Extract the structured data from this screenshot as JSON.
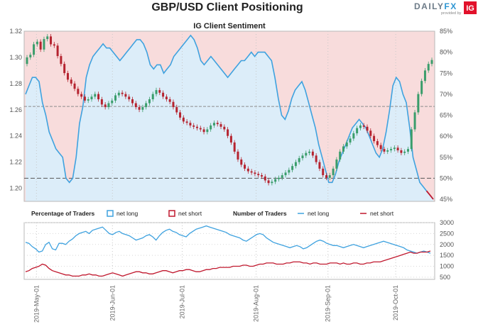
{
  "title": "GBP/USD Client Positioning",
  "logo": {
    "brand": "DAILYFX",
    "provided_by": "provided by",
    "ig": "IG"
  },
  "colors": {
    "long_line": "#3fa2df",
    "short_line": "#c0182e",
    "long_fill": "#dcedf9",
    "short_fill": "#f8dcdc",
    "candle_up": "#3a9d6b",
    "candle_down": "#b5232f"
  },
  "chart_data": [
    {
      "type": "candlestick+line",
      "title": "IG Client Sentiment",
      "y_left_ticks": [
        "1.32",
        "1.30",
        "1.28",
        "1.26",
        "1.24",
        "1.22",
        "1.20"
      ],
      "y_right_ticks": [
        "85%",
        "80%",
        "75%",
        "70%",
        "65%",
        "60%",
        "55%",
        "50%",
        "45%"
      ],
      "ylim_price": [
        1.19,
        1.32
      ],
      "ylim_pct": [
        44.5,
        85
      ],
      "reference_lines": {
        "price": 1.2625,
        "pct": 50
      },
      "candles": [
        [
          1.295,
          1.3
        ],
        [
          1.3,
          1.302
        ],
        [
          1.302,
          1.31
        ],
        [
          1.31,
          1.312
        ],
        [
          1.312,
          1.306
        ],
        [
          1.306,
          1.314
        ],
        [
          1.314,
          1.316
        ],
        [
          1.316,
          1.31
        ],
        [
          1.31,
          1.309
        ],
        [
          1.309,
          1.301
        ],
        [
          1.301,
          1.295
        ],
        [
          1.295,
          1.288
        ],
        [
          1.288,
          1.283
        ],
        [
          1.283,
          1.28
        ],
        [
          1.28,
          1.276
        ],
        [
          1.276,
          1.272
        ],
        [
          1.272,
          1.27
        ],
        [
          1.27,
          1.267
        ],
        [
          1.267,
          1.268
        ],
        [
          1.268,
          1.27
        ],
        [
          1.27,
          1.272
        ],
        [
          1.272,
          1.268
        ],
        [
          1.268,
          1.264
        ],
        [
          1.264,
          1.262
        ],
        [
          1.262,
          1.265
        ],
        [
          1.265,
          1.267
        ],
        [
          1.267,
          1.271
        ],
        [
          1.271,
          1.273
        ],
        [
          1.273,
          1.272
        ],
        [
          1.272,
          1.27
        ],
        [
          1.27,
          1.268
        ],
        [
          1.268,
          1.265
        ],
        [
          1.265,
          1.262
        ],
        [
          1.262,
          1.26
        ],
        [
          1.26,
          1.262
        ],
        [
          1.262,
          1.265
        ],
        [
          1.265,
          1.268
        ],
        [
          1.268,
          1.272
        ],
        [
          1.272,
          1.275
        ],
        [
          1.275,
          1.273
        ],
        [
          1.273,
          1.27
        ],
        [
          1.27,
          1.268
        ],
        [
          1.268,
          1.266
        ],
        [
          1.266,
          1.262
        ],
        [
          1.262,
          1.258
        ],
        [
          1.258,
          1.254
        ],
        [
          1.254,
          1.251
        ],
        [
          1.251,
          1.25
        ],
        [
          1.25,
          1.248
        ],
        [
          1.248,
          1.247
        ],
        [
          1.247,
          1.246
        ],
        [
          1.246,
          1.245
        ],
        [
          1.245,
          1.243
        ],
        [
          1.243,
          1.245
        ],
        [
          1.245,
          1.248
        ],
        [
          1.248,
          1.25
        ],
        [
          1.25,
          1.249
        ],
        [
          1.249,
          1.247
        ],
        [
          1.247,
          1.245
        ],
        [
          1.245,
          1.24
        ],
        [
          1.24,
          1.235
        ],
        [
          1.235,
          1.228
        ],
        [
          1.228,
          1.222
        ],
        [
          1.222,
          1.218
        ],
        [
          1.218,
          1.215
        ],
        [
          1.215,
          1.213
        ],
        [
          1.213,
          1.212
        ],
        [
          1.212,
          1.211
        ],
        [
          1.211,
          1.21
        ],
        [
          1.21,
          1.209
        ],
        [
          1.209,
          1.206
        ],
        [
          1.206,
          1.204
        ],
        [
          1.204,
          1.205
        ],
        [
          1.205,
          1.207
        ],
        [
          1.207,
          1.208
        ],
        [
          1.208,
          1.21
        ],
        [
          1.21,
          1.212
        ],
        [
          1.212,
          1.214
        ],
        [
          1.214,
          1.217
        ],
        [
          1.217,
          1.22
        ],
        [
          1.22,
          1.223
        ],
        [
          1.223,
          1.225
        ],
        [
          1.225,
          1.227
        ],
        [
          1.227,
          1.228
        ],
        [
          1.228,
          1.225
        ],
        [
          1.225,
          1.22
        ],
        [
          1.22,
          1.215
        ],
        [
          1.215,
          1.21
        ],
        [
          1.21,
          1.208
        ],
        [
          1.208,
          1.21
        ],
        [
          1.21,
          1.215
        ],
        [
          1.215,
          1.222
        ],
        [
          1.222,
          1.228
        ],
        [
          1.228,
          1.232
        ],
        [
          1.232,
          1.235
        ],
        [
          1.235,
          1.238
        ],
        [
          1.238,
          1.242
        ],
        [
          1.242,
          1.246
        ],
        [
          1.246,
          1.248
        ],
        [
          1.248,
          1.247
        ],
        [
          1.247,
          1.244
        ],
        [
          1.244,
          1.24
        ],
        [
          1.24,
          1.236
        ],
        [
          1.236,
          1.233
        ],
        [
          1.233,
          1.23
        ],
        [
          1.23,
          1.228
        ],
        [
          1.228,
          1.229
        ],
        [
          1.229,
          1.23
        ],
        [
          1.23,
          1.231
        ],
        [
          1.231,
          1.229
        ],
        [
          1.229,
          1.227
        ],
        [
          1.227,
          1.228
        ],
        [
          1.228,
          1.23
        ],
        [
          1.23,
          1.245
        ],
        [
          1.245,
          1.258
        ],
        [
          1.258,
          1.272
        ],
        [
          1.272,
          1.282
        ],
        [
          1.282,
          1.29
        ],
        [
          1.29,
          1.295
        ],
        [
          1.295,
          1.298
        ]
      ],
      "net_long_pct": [
        70,
        72,
        74,
        74,
        73,
        68,
        65,
        61,
        59,
        57,
        56,
        55,
        50,
        49,
        50,
        55,
        63,
        67,
        74,
        77,
        79,
        80,
        81,
        82,
        81,
        81,
        80,
        79,
        78,
        79,
        80,
        81,
        82,
        83,
        83,
        82,
        80,
        77,
        76,
        77,
        77,
        75,
        76,
        77,
        79,
        80,
        81,
        82,
        83,
        84,
        83,
        81,
        78,
        77,
        78,
        79,
        78,
        77,
        76,
        75,
        74,
        75,
        76,
        77,
        78,
        78,
        79,
        80,
        79,
        80,
        80,
        80,
        79,
        78,
        74,
        69,
        65,
        64,
        66,
        69,
        71,
        72,
        73,
        71,
        68,
        65,
        62,
        58,
        55,
        52,
        49,
        49,
        51,
        54,
        56,
        58,
        60,
        62,
        63,
        64,
        63,
        62,
        60,
        58,
        56,
        55,
        57,
        61,
        66,
        72,
        74,
        73,
        70,
        68,
        62,
        55,
        52,
        49,
        48,
        47,
        46,
        45
      ],
      "net_short_pct": [
        30,
        28,
        26,
        26,
        27,
        32,
        35,
        39,
        41,
        43,
        44,
        45,
        50,
        51,
        50,
        45,
        37,
        33,
        26,
        23,
        21,
        20,
        19,
        18,
        19,
        19,
        20,
        21,
        22,
        21,
        20,
        19,
        18,
        17,
        17,
        18,
        20,
        23,
        24,
        23,
        23,
        25,
        24,
        23,
        21,
        20,
        19,
        18,
        17,
        16,
        17,
        19,
        22,
        23,
        22,
        21,
        22,
        23,
        24,
        25,
        26,
        25,
        24,
        23,
        22,
        22,
        21,
        20,
        21,
        20,
        20,
        20,
        21,
        22,
        26,
        31,
        35,
        36,
        34,
        31,
        29,
        28,
        27,
        29,
        32,
        35,
        38,
        42,
        45,
        48,
        51,
        51,
        49,
        46,
        44,
        42,
        40,
        38,
        37,
        36,
        37,
        38,
        40,
        42,
        44,
        45,
        43,
        39,
        34,
        28,
        26,
        27,
        30,
        32,
        38,
        45,
        48,
        51,
        52,
        53,
        54,
        55
      ],
      "x_dates": [
        "2019-May-01",
        "2019-Jun-01",
        "2019-Jul-01",
        "2019-Aug-01",
        "2019-Sep-01",
        "2019-Oct-01"
      ]
    },
    {
      "type": "line",
      "title": "Number of Traders",
      "ylim": [
        400,
        3000
      ],
      "y_ticks": [
        "3000",
        "2500",
        "2000",
        "1500",
        "1000",
        "500"
      ],
      "legend": {
        "percentage_label": "Percentage of Traders",
        "pct_long": "net long",
        "pct_short": "net short",
        "number_label": "Number of Traders",
        "num_long": "net long",
        "num_short": "net short"
      },
      "net_long": [
        2100,
        2050,
        1900,
        1800,
        1650,
        1700,
        2000,
        2100,
        1800,
        1750,
        2050,
        2050,
        2000,
        2150,
        2250,
        2400,
        2500,
        2550,
        2600,
        2500,
        2650,
        2700,
        2750,
        2800,
        2650,
        2500,
        2450,
        2550,
        2600,
        2500,
        2450,
        2400,
        2300,
        2200,
        2250,
        2300,
        2400,
        2450,
        2350,
        2200,
        2400,
        2550,
        2650,
        2700,
        2600,
        2550,
        2450,
        2400,
        2350,
        2500,
        2600,
        2700,
        2750,
        2800,
        2850,
        2800,
        2750,
        2700,
        2650,
        2600,
        2550,
        2450,
        2400,
        2350,
        2300,
        2200,
        2150,
        2250,
        2350,
        2450,
        2500,
        2450,
        2300,
        2200,
        2100,
        2050,
        2000,
        1950,
        1900,
        1850,
        1900,
        1950,
        1900,
        1800,
        1850,
        1950,
        2050,
        2150,
        2200,
        2150,
        2050,
        2000,
        1950,
        1950,
        1900,
        1850,
        1900,
        1950,
        2000,
        1950,
        1900,
        1850,
        1900,
        1950,
        2000,
        2050,
        2100,
        2150,
        2100,
        2050,
        2000,
        1950,
        1900,
        1850,
        1750,
        1700,
        1650,
        1600,
        1650,
        1700,
        1650,
        1600
      ],
      "net_short": [
        750,
        800,
        900,
        950,
        1000,
        1100,
        1050,
        900,
        800,
        750,
        700,
        650,
        600,
        600,
        550,
        550,
        550,
        600,
        600,
        650,
        600,
        600,
        550,
        550,
        600,
        650,
        700,
        650,
        600,
        550,
        600,
        650,
        700,
        750,
        750,
        700,
        700,
        650,
        650,
        700,
        750,
        800,
        800,
        750,
        700,
        750,
        800,
        800,
        850,
        850,
        800,
        750,
        750,
        800,
        850,
        850,
        900,
        900,
        950,
        950,
        950,
        950,
        1000,
        1000,
        1000,
        1050,
        1050,
        1000,
        1000,
        1050,
        1100,
        1100,
        1150,
        1150,
        1150,
        1100,
        1100,
        1100,
        1150,
        1150,
        1200,
        1200,
        1200,
        1150,
        1150,
        1100,
        1150,
        1150,
        1100,
        1100,
        1100,
        1150,
        1150,
        1150,
        1100,
        1150,
        1100,
        1100,
        1150,
        1150,
        1100,
        1100,
        1150,
        1150,
        1200,
        1200,
        1200,
        1250,
        1300,
        1350,
        1400,
        1450,
        1500,
        1550,
        1600,
        1650,
        1600,
        1600,
        1650,
        1650,
        1650,
        1700
      ]
    }
  ]
}
